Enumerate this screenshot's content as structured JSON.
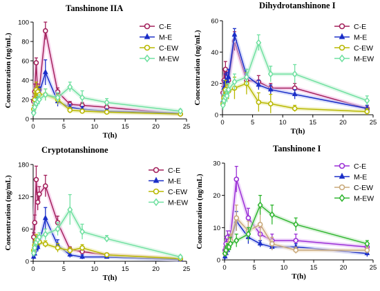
{
  "chart_data": [
    {
      "type": "line",
      "title": "Tanshinone IIA",
      "xlabel": "T(h)",
      "ylabel": "Concentration (ng/mL)",
      "xlim": [
        0,
        25
      ],
      "ylim": [
        0,
        100
      ],
      "xticks": [
        0,
        5,
        10,
        15,
        20,
        25
      ],
      "yticks": [
        0,
        20,
        40,
        60,
        80,
        100
      ],
      "legend_position": "top-right",
      "series": [
        {
          "name": "C-E",
          "color": "#a3215c",
          "marker": "circle",
          "halo": "#f3b5e0",
          "x": [
            0.083,
            0.25,
            0.5,
            0.75,
            1,
            2,
            4,
            6,
            8,
            12,
            24
          ],
          "y": [
            18,
            28,
            58,
            24,
            30,
            91,
            28,
            15,
            14,
            12,
            5
          ],
          "err": [
            5,
            8,
            5,
            6,
            6,
            9,
            4,
            3,
            3,
            3,
            2
          ]
        },
        {
          "name": "M-E",
          "color": "#1a2ec8",
          "marker": "triangle",
          "halo": "#b9c2f5",
          "x": [
            0.083,
            0.25,
            0.5,
            0.75,
            1,
            2,
            4,
            6,
            8,
            12,
            24
          ],
          "y": [
            8,
            15,
            20,
            24,
            27,
            48,
            18,
            12,
            10,
            8,
            6
          ],
          "err": [
            3,
            5,
            6,
            6,
            6,
            13,
            5,
            3,
            3,
            2,
            2
          ]
        },
        {
          "name": "C-EW",
          "color": "#b8b800",
          "marker": "circle",
          "halo": "#eaeaa0",
          "x": [
            0.083,
            0.25,
            0.5,
            0.75,
            1,
            2,
            4,
            6,
            8,
            12,
            24
          ],
          "y": [
            10,
            20,
            30,
            28,
            25,
            25,
            20,
            9,
            8,
            7,
            5
          ],
          "err": [
            4,
            7,
            8,
            6,
            6,
            6,
            5,
            3,
            2,
            2,
            2
          ]
        },
        {
          "name": "M-EW",
          "color": "#6fe0a0",
          "marker": "diamond",
          "halo": "#c8f3d9",
          "x": [
            0.083,
            0.25,
            0.5,
            0.75,
            1,
            2,
            4,
            6,
            8,
            12,
            24
          ],
          "y": [
            6,
            12,
            16,
            18,
            20,
            25,
            22,
            33,
            22,
            17,
            8
          ],
          "err": [
            3,
            5,
            5,
            5,
            5,
            6,
            5,
            5,
            7,
            4,
            2
          ]
        }
      ]
    },
    {
      "type": "line",
      "title": "Dihydrotanshinone I",
      "xlabel": "T(h)",
      "ylabel": "Concentration (ng/mL)",
      "xlim": [
        0,
        25
      ],
      "ylim": [
        0,
        60
      ],
      "xticks": [
        0,
        5,
        10,
        15,
        20,
        25
      ],
      "yticks": [
        0,
        20,
        40,
        60
      ],
      "legend_position": "top-right",
      "series": [
        {
          "name": "C-E",
          "color": "#a3215c",
          "marker": "circle",
          "halo": "#f3b5e0",
          "x": [
            0.083,
            0.25,
            0.5,
            0.75,
            1,
            2,
            4,
            6,
            8,
            12,
            24
          ],
          "y": [
            14,
            22,
            29,
            24,
            22,
            47,
            22,
            21,
            17,
            17,
            4
          ],
          "err": [
            4,
            6,
            5,
            5,
            4,
            6,
            5,
            4,
            3,
            3,
            2
          ]
        },
        {
          "name": "M-E",
          "color": "#1a2ec8",
          "marker": "triangle",
          "halo": "#b9c2f5",
          "x": [
            0.083,
            0.25,
            0.5,
            0.75,
            1,
            2,
            4,
            6,
            8,
            12,
            24
          ],
          "y": [
            9,
            17,
            21,
            22,
            24,
            51,
            25,
            19,
            16,
            13,
            4
          ],
          "err": [
            3,
            5,
            5,
            5,
            5,
            4,
            4,
            3,
            3,
            3,
            2
          ]
        },
        {
          "name": "C-EW",
          "color": "#b8b800",
          "marker": "circle",
          "halo": "#eaeaa0",
          "x": [
            0.083,
            0.25,
            0.5,
            0.75,
            1,
            2,
            4,
            6,
            8,
            12,
            24
          ],
          "y": [
            7,
            11,
            16,
            14,
            15,
            17,
            20,
            8,
            7,
            4,
            2
          ],
          "err": [
            3,
            5,
            6,
            5,
            5,
            7,
            7,
            6,
            6,
            2,
            2
          ]
        },
        {
          "name": "M-EW",
          "color": "#6fe0a0",
          "marker": "diamond",
          "halo": "#c8f3d9",
          "x": [
            0.083,
            0.25,
            0.5,
            0.75,
            1,
            2,
            4,
            6,
            8,
            12,
            24
          ],
          "y": [
            6,
            9,
            11,
            12,
            16,
            21,
            24,
            46,
            26,
            26,
            9
          ],
          "err": [
            3,
            4,
            4,
            4,
            4,
            5,
            5,
            5,
            5,
            6,
            3
          ]
        }
      ]
    },
    {
      "type": "line",
      "title": "Cryptotanshinone",
      "xlabel": "T(h)",
      "ylabel": "Concentration (ng/mL)",
      "xlim": [
        0,
        25
      ],
      "ylim": [
        0,
        180
      ],
      "xticks": [
        0,
        5,
        10,
        15,
        20,
        25
      ],
      "yticks": [
        0,
        60,
        120,
        180
      ],
      "legend_position": "top-right",
      "series": [
        {
          "name": "C-E",
          "color": "#a3215c",
          "marker": "circle",
          "halo": "#f3b5e0",
          "x": [
            0.083,
            0.25,
            0.5,
            0.75,
            1,
            2,
            4,
            6,
            8,
            12,
            24
          ],
          "y": [
            45,
            72,
            152,
            110,
            125,
            140,
            72,
            22,
            18,
            12,
            4
          ],
          "err": [
            8,
            14,
            25,
            15,
            14,
            20,
            12,
            5,
            4,
            3,
            2
          ]
        },
        {
          "name": "M-E",
          "color": "#1a2ec8",
          "marker": "triangle",
          "halo": "#b9c2f5",
          "x": [
            0.083,
            0.25,
            0.5,
            0.75,
            1,
            2,
            4,
            6,
            8,
            12,
            24
          ],
          "y": [
            8,
            14,
            24,
            26,
            35,
            80,
            30,
            12,
            8,
            8,
            3
          ],
          "err": [
            4,
            6,
            8,
            8,
            10,
            20,
            10,
            5,
            4,
            3,
            2
          ]
        },
        {
          "name": "C-EW",
          "color": "#b8b800",
          "marker": "circle",
          "halo": "#eaeaa0",
          "x": [
            0.083,
            0.25,
            0.5,
            0.75,
            1,
            2,
            4,
            6,
            8,
            12,
            24
          ],
          "y": [
            20,
            30,
            40,
            38,
            36,
            32,
            25,
            20,
            25,
            12,
            5
          ],
          "err": [
            6,
            8,
            10,
            8,
            8,
            6,
            8,
            6,
            6,
            3,
            2
          ]
        },
        {
          "name": "M-EW",
          "color": "#6fe0a0",
          "marker": "diamond",
          "halo": "#c8f3d9",
          "x": [
            0.083,
            0.25,
            0.5,
            0.75,
            1,
            2,
            4,
            6,
            8,
            12,
            24
          ],
          "y": [
            15,
            25,
            35,
            40,
            45,
            50,
            60,
            96,
            55,
            42,
            8
          ],
          "err": [
            5,
            6,
            8,
            8,
            8,
            10,
            12,
            28,
            14,
            6,
            3
          ]
        }
      ]
    },
    {
      "type": "line",
      "title": "Tanshinone I",
      "xlabel": "T(h)",
      "ylabel": "Concentration (ng/mL)",
      "xlim": [
        0,
        25
      ],
      "ylim": [
        0,
        30
      ],
      "xticks": [
        0,
        5,
        10,
        15,
        20,
        25
      ],
      "yticks": [
        0,
        10,
        20,
        30
      ],
      "legend_position": "top-right",
      "series": [
        {
          "name": "C-E",
          "color": "#9a2fd6",
          "marker": "circle",
          "halo": "#e2b7f5",
          "x": [
            0.083,
            0.25,
            0.5,
            0.75,
            1,
            2,
            4,
            6,
            8,
            12,
            24
          ],
          "y": [
            3,
            5,
            7,
            6,
            7,
            25,
            13,
            8,
            6,
            6,
            4
          ],
          "err": [
            1,
            2,
            2,
            2,
            2,
            4,
            3,
            2,
            2,
            2,
            1
          ]
        },
        {
          "name": "M-E",
          "color": "#1a2ec8",
          "marker": "triangle",
          "halo": "#b9c2f5",
          "x": [
            0.083,
            0.25,
            0.5,
            0.75,
            1,
            2,
            4,
            6,
            8,
            12,
            24
          ],
          "y": [
            1,
            2,
            3,
            5,
            6,
            12,
            7,
            5,
            4,
            4,
            2
          ],
          "err": [
            1,
            1,
            1,
            2,
            2,
            3,
            2,
            1,
            1,
            1,
            1
          ]
        },
        {
          "name": "C-EW",
          "color": "#c9a97a",
          "marker": "circle",
          "halo": "#f0e0c8",
          "x": [
            0.083,
            0.25,
            0.5,
            0.75,
            1,
            2,
            4,
            6,
            8,
            12,
            24
          ],
          "y": [
            2,
            3,
            4,
            5,
            6,
            13,
            9,
            11,
            5,
            3,
            3
          ],
          "err": [
            1,
            1,
            1,
            2,
            2,
            4,
            3,
            5,
            2,
            1,
            1
          ]
        },
        {
          "name": "M-EW",
          "color": "#2fb52f",
          "marker": "diamond",
          "halo": "#bfeabf",
          "x": [
            0.083,
            0.25,
            0.5,
            0.75,
            1,
            2,
            4,
            6,
            8,
            12,
            24
          ],
          "y": [
            2,
            3,
            4,
            4,
            5,
            6,
            8,
            17,
            14,
            11,
            5
          ],
          "err": [
            1,
            1,
            1,
            1,
            2,
            2,
            2,
            3,
            3,
            2,
            1
          ]
        }
      ]
    }
  ]
}
